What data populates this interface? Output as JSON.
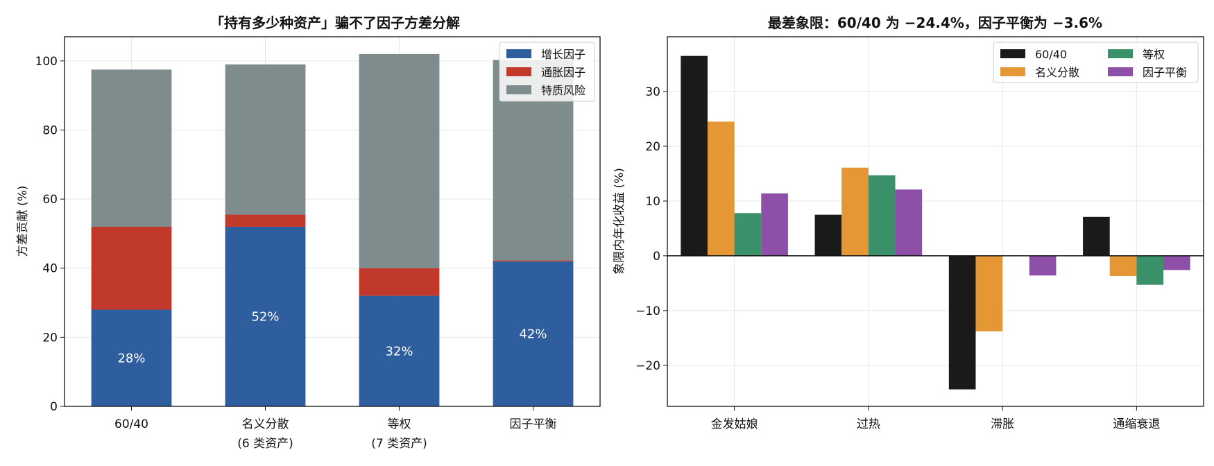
{
  "chart_data": [
    {
      "type": "bar",
      "stacked": true,
      "title": "「持有多少种资产」骗不了因子方差分解",
      "xlabel": "",
      "ylabel": "方差贡献 (%)",
      "ylim": [
        0,
        107
      ],
      "yticks": [
        0,
        20,
        40,
        60,
        80,
        100
      ],
      "grid": true,
      "legend_position": "top-right",
      "categories": [
        [
          "60/40"
        ],
        [
          "名义分散",
          "(6 类资产)"
        ],
        [
          "等权",
          "(7 类资产)"
        ],
        [
          "因子平衡"
        ]
      ],
      "series": [
        {
          "name": "增长因子",
          "color": "#2e5e9e",
          "values": [
            28,
            52,
            32,
            42
          ]
        },
        {
          "name": "通胀因子",
          "color": "#c0392b",
          "values": [
            24,
            3.5,
            8,
            0.3
          ]
        },
        {
          "name": "特质风险",
          "color": "#7f8c8d",
          "values": [
            45.5,
            43.5,
            62,
            58
          ]
        }
      ],
      "data_labels": [
        "28%",
        "52%",
        "32%",
        "42%"
      ]
    },
    {
      "type": "bar",
      "title": "最差象限：60/40 为 −24.4%，因子平衡为 −3.6%",
      "xlabel": "",
      "ylabel": "象限内年化收益 (%)",
      "ylim": [
        -27.5,
        40
      ],
      "yticks": [
        -20,
        -10,
        0,
        10,
        20,
        30
      ],
      "grid": true,
      "legend_position": "top-right",
      "categories": [
        "金发姑娘",
        "过热",
        "滞胀",
        "通缩衰退"
      ],
      "series": [
        {
          "name": "60/40",
          "color": "#1a1a1a",
          "values": [
            36.5,
            7.5,
            -24.4,
            7.1
          ]
        },
        {
          "name": "名义分散",
          "color": "#e69735",
          "values": [
            24.5,
            16.1,
            -13.8,
            -3.7
          ]
        },
        {
          "name": "等权",
          "color": "#3b9169",
          "values": [
            7.8,
            14.7,
            0,
            -5.3
          ]
        },
        {
          "name": "因子平衡",
          "color": "#8e4fa8",
          "values": [
            11.4,
            12.1,
            -3.6,
            -2.6
          ]
        }
      ]
    }
  ]
}
